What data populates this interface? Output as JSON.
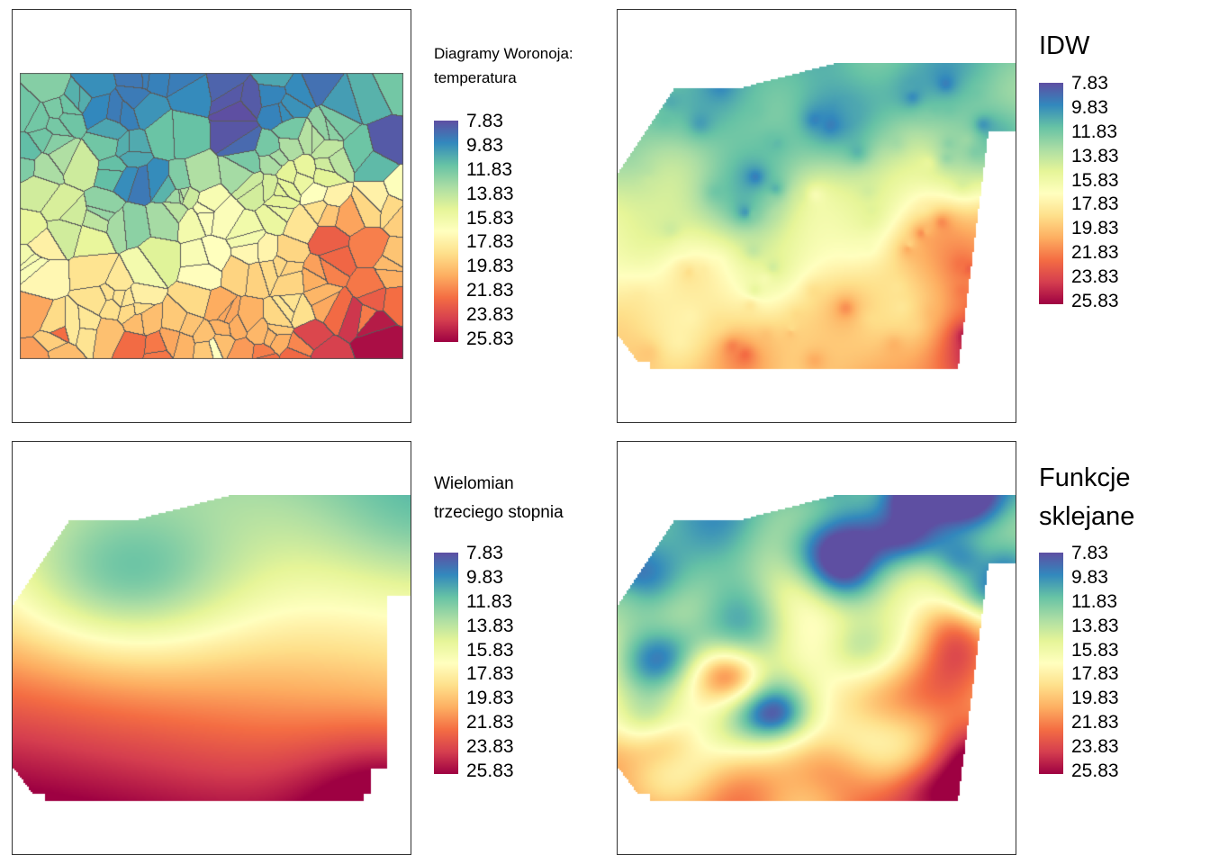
{
  "colors": [
    "#5e4fa2",
    "#3288bd",
    "#66c2a5",
    "#abdda4",
    "#e6f598",
    "#ffffbf",
    "#fee08b",
    "#fdae61",
    "#f46d43",
    "#d53e4f",
    "#9e0142"
  ],
  "panels": [
    {
      "id": "voronoi",
      "title_lines": [
        "Diagramy Woronoja:",
        "temperatura"
      ],
      "title_size": "small",
      "map_type": "voronoi"
    },
    {
      "id": "idw",
      "title_lines": [
        "IDW"
      ],
      "title_size": "large",
      "map_type": "idw"
    },
    {
      "id": "poly",
      "title_lines": [
        "Wielomian",
        "trzeciego stopnia"
      ],
      "title_size": "small",
      "map_type": "poly"
    },
    {
      "id": "spline",
      "title_lines": [
        "Funkcje",
        "sklejane"
      ],
      "title_size": "large",
      "map_type": "spline"
    }
  ],
  "legend_labels": [
    "7.83",
    "9.83",
    "11.83",
    "13.83",
    "15.83",
    "17.83",
    "19.83",
    "21.83",
    "23.83",
    "25.83"
  ]
}
